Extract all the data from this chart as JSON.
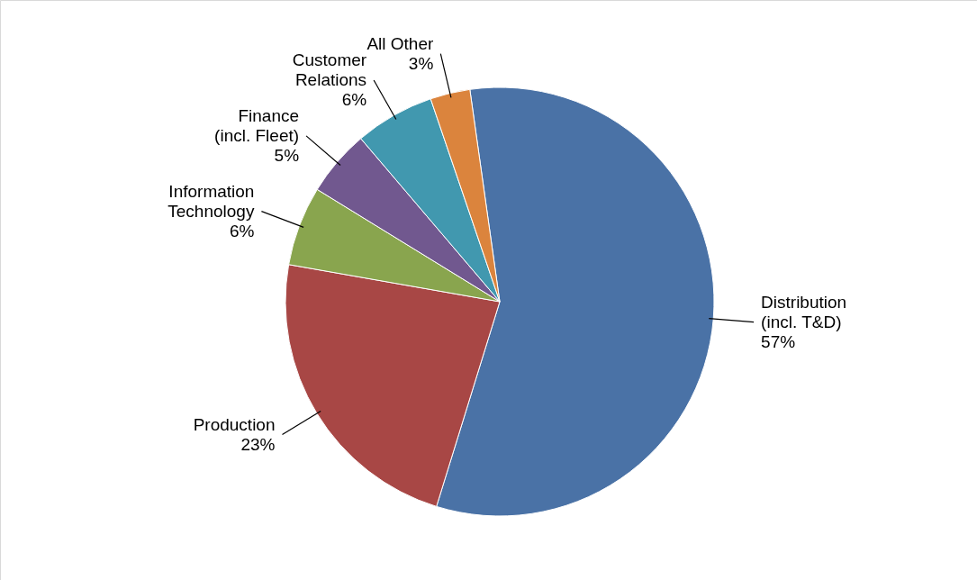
{
  "chart_data": {
    "type": "pie",
    "categories": [
      "Distribution\n(incl. T&D)",
      "Production",
      "Information\nTechnology",
      "Finance\n(incl. Fleet)",
      "Customer\nRelations",
      "All Other"
    ],
    "values": [
      57,
      23,
      6,
      5,
      6,
      3
    ],
    "value_labels": [
      "57%",
      "23%",
      "6%",
      "5%",
      "6%",
      "3%"
    ],
    "colors": [
      "#4a72a6",
      "#a84745",
      "#89a54e",
      "#71588f",
      "#4198af",
      "#db843d"
    ]
  }
}
